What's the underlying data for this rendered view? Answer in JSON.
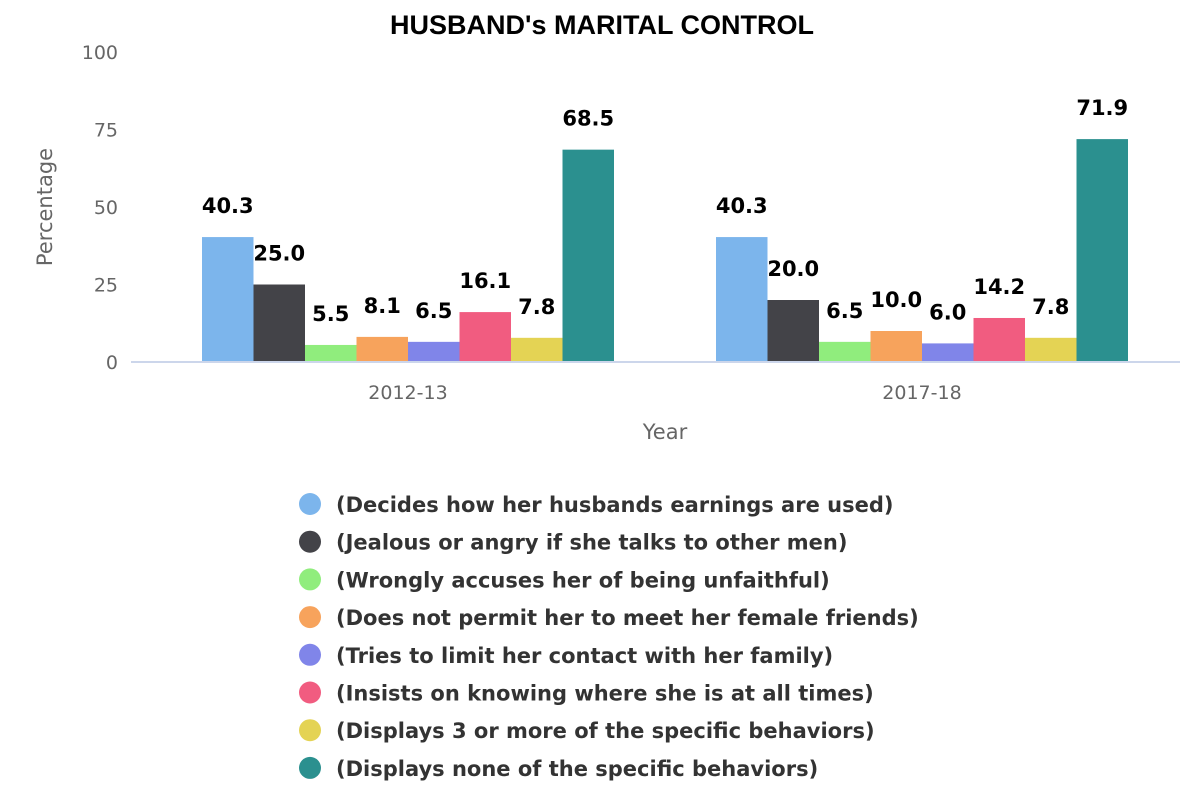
{
  "chart_data": {
    "type": "bar",
    "title": "HUSBAND's MARITAL CONTROL",
    "xlabel": "Year",
    "ylabel": "Percentage",
    "ylim": [
      0,
      100
    ],
    "yticks": [
      "0",
      "25",
      "50",
      "75",
      "100"
    ],
    "grid": false,
    "legend_position": "bottom",
    "categories": [
      "2012-13",
      "2017-18"
    ],
    "series": [
      {
        "name": "(Decides how her husbands earnings are used)",
        "color": "#7cb5ec",
        "values": [
          40.3,
          40.3
        ]
      },
      {
        "name": "(Jealous or angry if she talks to other men)",
        "color": "#434348",
        "values": [
          25.0,
          20.0
        ]
      },
      {
        "name": "(Wrongly accuses her of being unfaithful)",
        "color": "#90ed7d",
        "values": [
          5.5,
          6.5
        ]
      },
      {
        "name": "(Does not permit her to meet her female friends)",
        "color": "#f7a35c",
        "values": [
          8.1,
          10.0
        ]
      },
      {
        "name": "(Tries to limit her contact with her family)",
        "color": "#8085e9",
        "values": [
          6.5,
          6.0
        ]
      },
      {
        "name": "(Insists on knowing where she is at all times)",
        "color": "#f15c80",
        "values": [
          16.1,
          14.2
        ]
      },
      {
        "name": "(Displays 3 or more of the specific behaviors)",
        "color": "#e4d354",
        "values": [
          7.8,
          7.8
        ]
      },
      {
        "name": "(Displays none of the specific behaviors)",
        "color": "#2b908f",
        "values": [
          68.5,
          71.9
        ]
      }
    ]
  }
}
